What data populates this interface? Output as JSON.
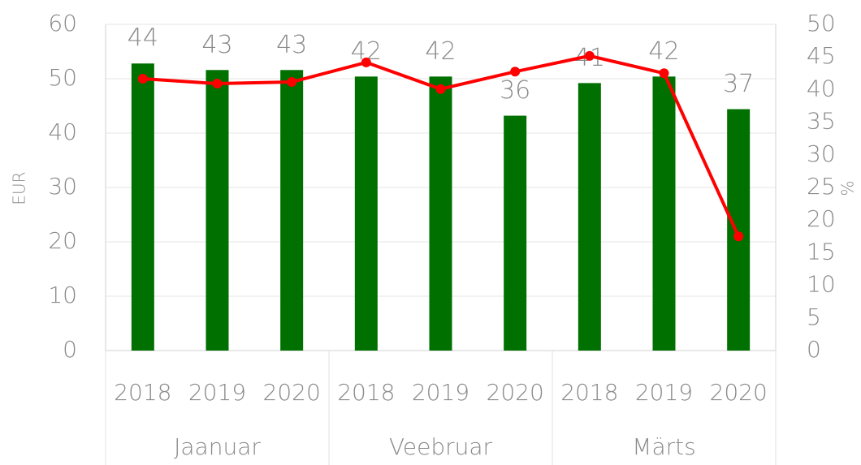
{
  "chart_data": {
    "type": "bar-line",
    "y_label": "EUR",
    "y2_label": "%",
    "categories": [
      "2018",
      "2019",
      "2020",
      "2018",
      "2019",
      "2020",
      "2018",
      "2019",
      "2020"
    ],
    "group_labels": [
      "Jaanuar",
      "Veebruar",
      "Märts"
    ],
    "series": [
      {
        "type": "bar",
        "axis": "y2",
        "color": "#007000",
        "values": [
          44,
          43,
          43,
          42,
          42,
          36,
          41,
          42,
          37
        ]
      },
      {
        "type": "line",
        "axis": "y",
        "color": "#ff0000",
        "values": [
          50.0,
          49.1,
          49.4,
          53.0,
          48.1,
          51.3,
          54.2,
          51.0,
          21.0
        ]
      }
    ],
    "ylim": [
      0,
      60
    ],
    "yticks": [
      0,
      10,
      20,
      30,
      40,
      50,
      60
    ],
    "y2lim": [
      0,
      50
    ],
    "y2ticks": [
      0,
      5,
      10,
      15,
      20,
      25,
      30,
      35,
      40,
      45,
      50
    ],
    "grid": true
  }
}
